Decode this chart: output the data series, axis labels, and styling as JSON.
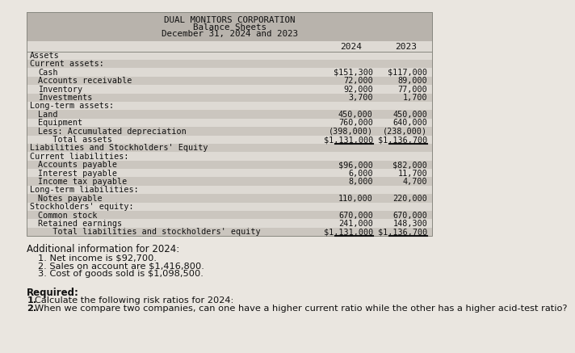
{
  "title_line1": "DUAL MONITORS CORPORATION",
  "title_line2": "Balance Sheets",
  "title_line3": "December 31, 2024 and 2023",
  "col_2024": "2024",
  "col_2023": "2023",
  "rows": [
    {
      "label": "Assets",
      "indent": 0,
      "val2024": "",
      "val2023": "",
      "style": "normal",
      "bg": "light"
    },
    {
      "label": "Current assets:",
      "indent": 0,
      "val2024": "",
      "val2023": "",
      "style": "normal",
      "bg": "dark"
    },
    {
      "label": "Cash",
      "indent": 1,
      "val2024": "$151,300",
      "val2023": "$117,000",
      "style": "normal",
      "bg": "light"
    },
    {
      "label": "Accounts receivable",
      "indent": 1,
      "val2024": "72,000",
      "val2023": "89,000",
      "style": "normal",
      "bg": "dark"
    },
    {
      "label": "Inventory",
      "indent": 1,
      "val2024": "92,000",
      "val2023": "77,000",
      "style": "normal",
      "bg": "light"
    },
    {
      "label": "Investments",
      "indent": 1,
      "val2024": "3,700",
      "val2023": "1,700",
      "style": "normal",
      "bg": "dark"
    },
    {
      "label": "Long-term assets:",
      "indent": 0,
      "val2024": "",
      "val2023": "",
      "style": "normal",
      "bg": "light"
    },
    {
      "label": "Land",
      "indent": 1,
      "val2024": "450,000",
      "val2023": "450,000",
      "style": "normal",
      "bg": "dark"
    },
    {
      "label": "Equipment",
      "indent": 1,
      "val2024": "760,000",
      "val2023": "640,000",
      "style": "normal",
      "bg": "light"
    },
    {
      "label": "Less: Accumulated depreciation",
      "indent": 1,
      "val2024": "(398,000)",
      "val2023": "(238,000)",
      "style": "normal",
      "bg": "dark"
    },
    {
      "label": "   Total assets",
      "indent": 1,
      "val2024": "$1,131,000",
      "val2023": "$1,136,700",
      "style": "underline",
      "bg": "light"
    },
    {
      "label": "Liabilities and Stockholders' Equity",
      "indent": 0,
      "val2024": "",
      "val2023": "",
      "style": "normal",
      "bg": "dark"
    },
    {
      "label": "Current liabilities:",
      "indent": 0,
      "val2024": "",
      "val2023": "",
      "style": "normal",
      "bg": "light"
    },
    {
      "label": "Accounts payable",
      "indent": 1,
      "val2024": "$96,000",
      "val2023": "$82,000",
      "style": "normal",
      "bg": "dark"
    },
    {
      "label": "Interest payable",
      "indent": 1,
      "val2024": "6,000",
      "val2023": "11,700",
      "style": "normal",
      "bg": "light"
    },
    {
      "label": "Income tax payable",
      "indent": 1,
      "val2024": "8,000",
      "val2023": "4,700",
      "style": "normal",
      "bg": "dark"
    },
    {
      "label": "Long-term liabilities:",
      "indent": 0,
      "val2024": "",
      "val2023": "",
      "style": "normal",
      "bg": "light"
    },
    {
      "label": "Notes payable",
      "indent": 1,
      "val2024": "110,000",
      "val2023": "220,000",
      "style": "normal",
      "bg": "dark"
    },
    {
      "label": "Stockholders' equity:",
      "indent": 0,
      "val2024": "",
      "val2023": "",
      "style": "normal",
      "bg": "light"
    },
    {
      "label": "Common stock",
      "indent": 1,
      "val2024": "670,000",
      "val2023": "670,000",
      "style": "normal",
      "bg": "dark"
    },
    {
      "label": "Retained earnings",
      "indent": 1,
      "val2024": "241,000",
      "val2023": "148,300",
      "style": "normal",
      "bg": "light"
    },
    {
      "label": "   Total liabilities and stockholders' equity",
      "indent": 1,
      "val2024": "$1,131,000",
      "val2023": "$1,136,700",
      "style": "underline",
      "bg": "dark"
    }
  ],
  "additional_info_header": "Additional information for 2024:",
  "additional_info": [
    "1. Net income is $92,700.",
    "2. Sales on account are $1,416,800.",
    "3. Cost of goods sold is $1,098,500."
  ],
  "required_header": "Required:",
  "required_items": [
    "1. Calculate the following risk ratios for 2024:",
    "2. When we compare two companies, can one have a higher current ratio while the other has a higher acid-test ratio?"
  ],
  "bg_color": "#eae6e0",
  "table_bg_light": "#dedad4",
  "table_bg_dark": "#cbc6bf",
  "header_bg": "#b8b3ac",
  "border_color": "#888880",
  "text_color": "#111111"
}
